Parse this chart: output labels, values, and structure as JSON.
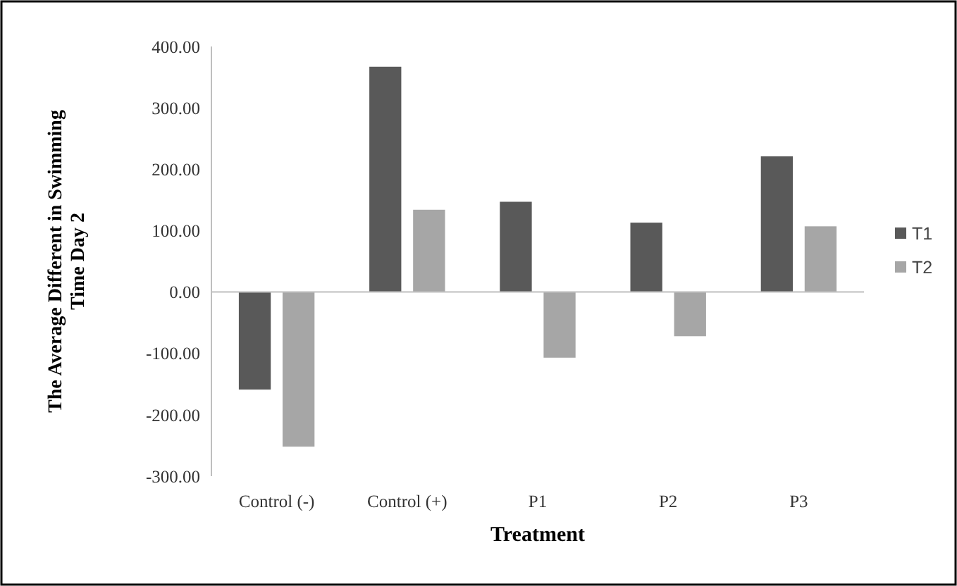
{
  "chart_data": {
    "type": "bar",
    "xlabel": "Treatment",
    "ylabel": "The Average Different in Swimming Time Day 2",
    "categories": [
      "Control (-)",
      "Control (+)",
      "P1",
      "P2",
      "P3"
    ],
    "series": [
      {
        "name": "T1",
        "color": "#595959",
        "values": [
          -159,
          367,
          147,
          113,
          221
        ]
      },
      {
        "name": "T2",
        "color": "#a6a6a6",
        "values": [
          -252,
          134,
          -107,
          -72,
          107
        ]
      }
    ],
    "ylim": [
      -300,
      400
    ],
    "yticks": [
      {
        "value": -300,
        "label": "-300.00"
      },
      {
        "value": -200,
        "label": "-200.00"
      },
      {
        "value": -100,
        "label": "-100.00"
      },
      {
        "value": 0,
        "label": "0.00"
      },
      {
        "value": 100,
        "label": "100.00"
      },
      {
        "value": 200,
        "label": "200.00"
      },
      {
        "value": 300,
        "label": "300.00"
      },
      {
        "value": 400,
        "label": "400.00"
      }
    ],
    "legend": "right"
  }
}
